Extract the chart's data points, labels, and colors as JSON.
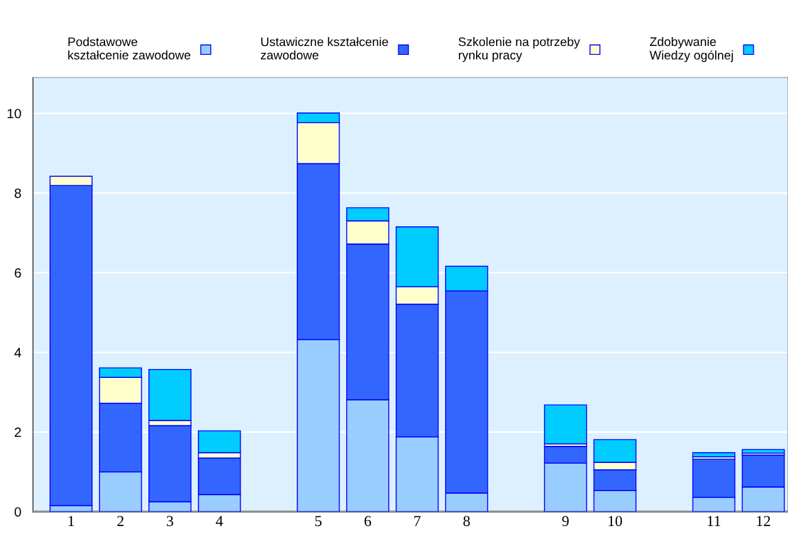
{
  "chart_data": {
    "type": "bar",
    "stacked": true,
    "categories": [
      "1",
      "2",
      "3",
      "4",
      null,
      "5",
      "6",
      "7",
      "8",
      null,
      "9",
      "10",
      null,
      "11",
      "12"
    ],
    "series": [
      {
        "name": "Podstawowe\nkształcenie zawodowe",
        "color": "#99ccff",
        "values": [
          0.15,
          1.0,
          0.25,
          0.43,
          null,
          4.32,
          2.81,
          1.88,
          0.47,
          null,
          1.22,
          0.53,
          null,
          0.36,
          0.62
        ]
      },
      {
        "name": "Ustawiczne kształcenie\nzawodowe",
        "color": "#3366ff",
        "values": [
          8.04,
          1.72,
          1.91,
          0.92,
          null,
          4.42,
          3.91,
          3.33,
          5.07,
          null,
          0.42,
          0.52,
          null,
          0.96,
          0.8
        ]
      },
      {
        "name": "Szkolenie na potrzeby\nrynku pracy",
        "color": "#ffffcc",
        "values": [
          0.23,
          0.65,
          0.13,
          0.13,
          null,
          1.03,
          0.58,
          0.44,
          0,
          null,
          0.06,
          0.19,
          null,
          0.06,
          0.05
        ]
      },
      {
        "name": "Zdobywanie\nWiedzy ogólnej",
        "color": "#00ccff",
        "values": [
          0,
          0.24,
          1.28,
          0.55,
          null,
          0.24,
          0.33,
          1.5,
          0.62,
          null,
          0.98,
          0.57,
          null,
          0.1,
          0.09
        ]
      }
    ],
    "ylim": [
      0,
      10.9
    ],
    "yticks": [
      0,
      2,
      4,
      6,
      8,
      10
    ],
    "grid": "y",
    "legend": "top"
  }
}
